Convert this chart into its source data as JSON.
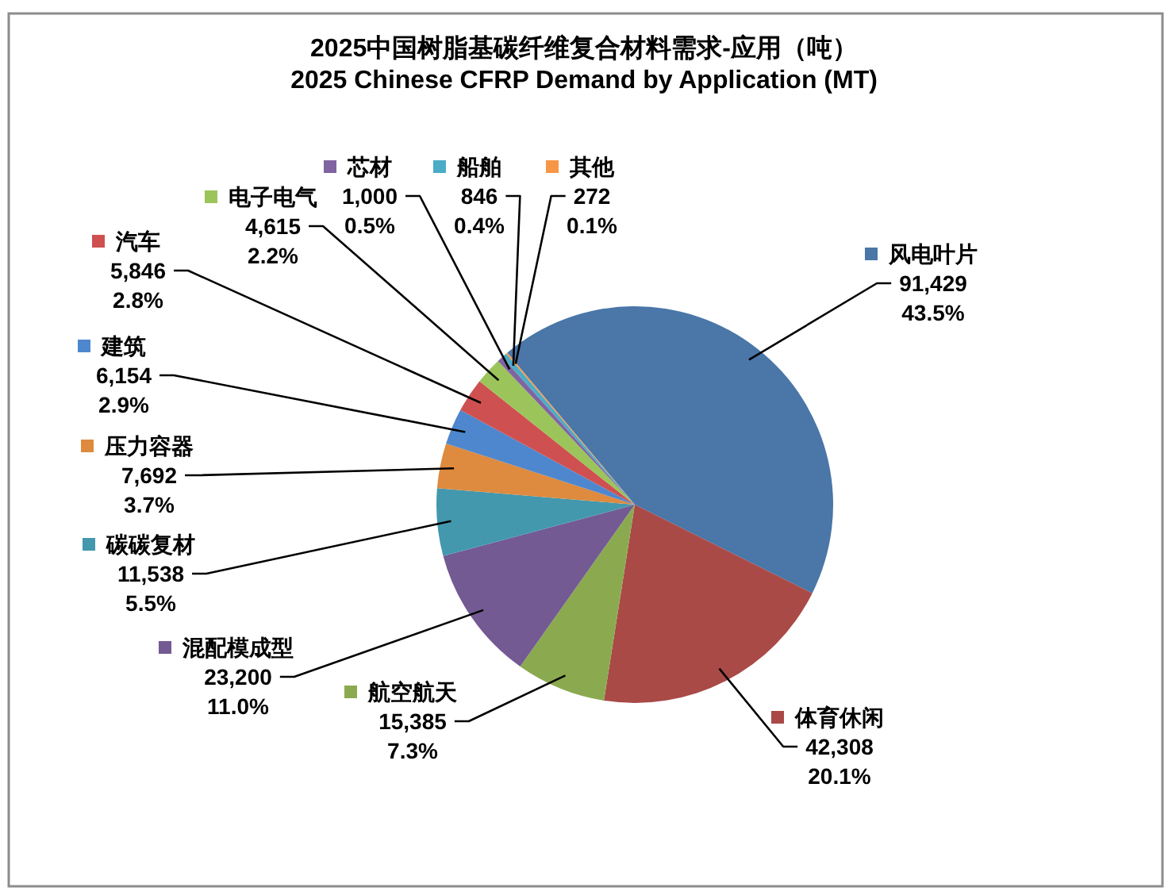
{
  "chart_data": {
    "type": "pie",
    "title": "2025中国树脂基碳纤维复合材料需求-应用（吨）",
    "subtitle": "2025 Chinese CFRP Demand by Application (MT)",
    "categories": [
      "风电叶片",
      "体育休闲",
      "航空航天",
      "混配模成型",
      "碳碳复材",
      "压力容器",
      "建筑",
      "汽车",
      "电子电气",
      "芯材",
      "船舶",
      "其他"
    ],
    "values": [
      91429,
      42308,
      15385,
      23200,
      11538,
      7692,
      6154,
      5846,
      4615,
      1000,
      846,
      272
    ],
    "colors": [
      "#4a76a8",
      "#a94a47",
      "#8baa50",
      "#735a92",
      "#4398ae",
      "#de8a3f",
      "#4e87ce",
      "#cf5050",
      "#9bc45a",
      "#8064a2",
      "#4bacc6",
      "#f79646"
    ],
    "value_labels": [
      "91,429\n43.5%",
      "42,308\n20.1%",
      "15,385\n7.3%",
      "23,200\n11.0%",
      "11,538\n5.5%",
      "7,692\n3.7%",
      "6,154\n2.9%",
      "5,846\n2.8%",
      "4,615\n2.2%",
      "1,000\n0.5%",
      "846\n0.4%",
      "272\n0.1%"
    ],
    "legend": "left"
  }
}
